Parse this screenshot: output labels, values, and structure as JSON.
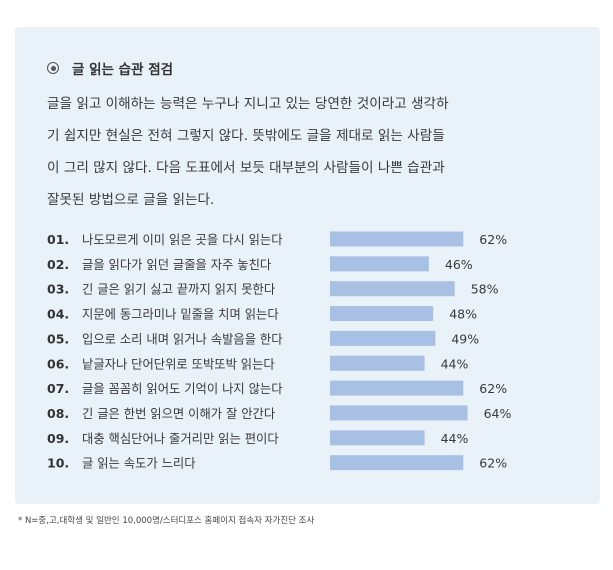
{
  "section": {
    "bullet_icon": "radio-bullet-icon",
    "title": "글 읽는 습관 점검",
    "intro_lines": [
      "글을 읽고 이해하는 능력은 누구나 지니고 있는 당연한 것이라고 생각하",
      "기 쉽지만 현실은 전혀 그렇지 않다. 뜻밖에도 글을 제대로 읽는 사람들",
      "이 그리 많지 않다. 다음 도표에서 보듯 대부분의 사람들이 나쁜 습관과",
      "잘못된 방법으로 글을 읽는다."
    ]
  },
  "chart_data": {
    "type": "bar",
    "orientation": "horizontal",
    "numbers": [
      "01.",
      "02.",
      "03.",
      "04.",
      "05.",
      "06.",
      "07.",
      "08.",
      "09.",
      "10."
    ],
    "categories": [
      "나도모르게 이미 읽은 곳을 다시 읽는다",
      "글을 읽다가 읽던 글줄을 자주 놓친다",
      "긴 글은 읽기 싫고 끝까지 읽지 못한다",
      "지문에 동그라미나 밑줄을 치며 읽는다",
      "입으로 소리 내며 읽거나 속발음을 한다",
      "낱글자나 단어단위로 또박또박 읽는다",
      "글을 꼼꼼히 읽어도 기억이 나지 않는다",
      "긴 글은 한번 읽으면 이해가 잘 안간다",
      "대충 핵심단어나 줄거리만 읽는 편이다",
      "글 읽는 속도가 느리다"
    ],
    "values": [
      62,
      46,
      58,
      48,
      49,
      44,
      62,
      64,
      44,
      62
    ],
    "value_labels": [
      "62%",
      "46%",
      "58%",
      "48%",
      "49%",
      "44%",
      "62%",
      "64%",
      "44%",
      "62%"
    ],
    "unit": "%",
    "bar_color": "#a8c0e4",
    "xlim": [
      0,
      100
    ],
    "grid": false
  },
  "footnote": "* N=중,고,대학생 및 일반인 10,000명/스터디포스 홈페이지 접속자 자가진단 조사"
}
